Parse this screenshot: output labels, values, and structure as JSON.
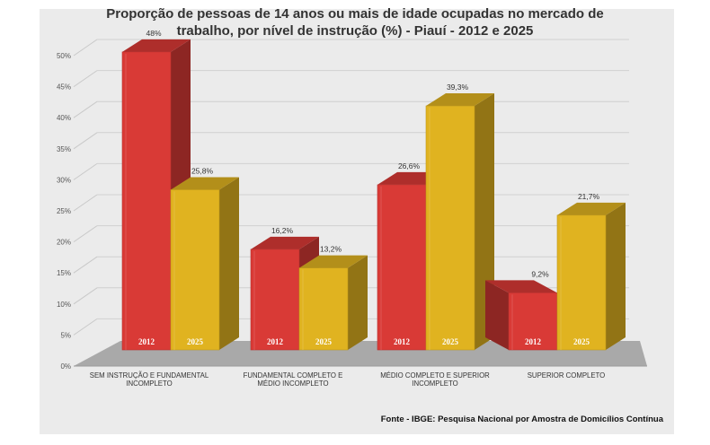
{
  "chart_data": {
    "type": "bar",
    "title_lines": [
      "Proporção de pessoas de 14 anos ou mais de idade ocupadas no mercado de",
      "trabalho, por nível de instrução (%) - Piauí - 2012 e 2025"
    ],
    "categories": [
      [
        "SEM INSTRUÇÃO E FUNDAMENTAL",
        "INCOMPLETO"
      ],
      [
        "FUNDAMENTAL COMPLETO E",
        "MÉDIO INCOMPLETO"
      ],
      [
        "MÉDIO COMPLETO E SUPERIOR",
        "INCOMPLETO"
      ],
      [
        "SUPERIOR COMPLETO"
      ]
    ],
    "series": [
      {
        "name": "2012",
        "color": "#d93a36",
        "values": [
          48,
          16.2,
          26.6,
          9.2
        ],
        "labels": [
          "48%",
          "16,2%",
          "26,6%",
          "9,2%"
        ]
      },
      {
        "name": "2025",
        "color": "#e0b320",
        "values": [
          25.8,
          13.2,
          39.3,
          21.7
        ],
        "labels": [
          "25,8%",
          "13,2%",
          "39,3%",
          "21,7%"
        ]
      }
    ],
    "yticks": [
      0,
      5,
      10,
      15,
      20,
      25,
      30,
      35,
      40,
      45,
      50
    ],
    "ytick_labels": [
      "0%",
      "5%",
      "10%",
      "15%",
      "20%",
      "25%",
      "30%",
      "35%",
      "40%",
      "45%",
      "50%"
    ],
    "ylim": [
      0,
      50
    ],
    "grid": true,
    "legend": "none"
  },
  "source": "Fonte - IBGE: Pesquisa Nacional por Amostra de Domicílios Contínua"
}
